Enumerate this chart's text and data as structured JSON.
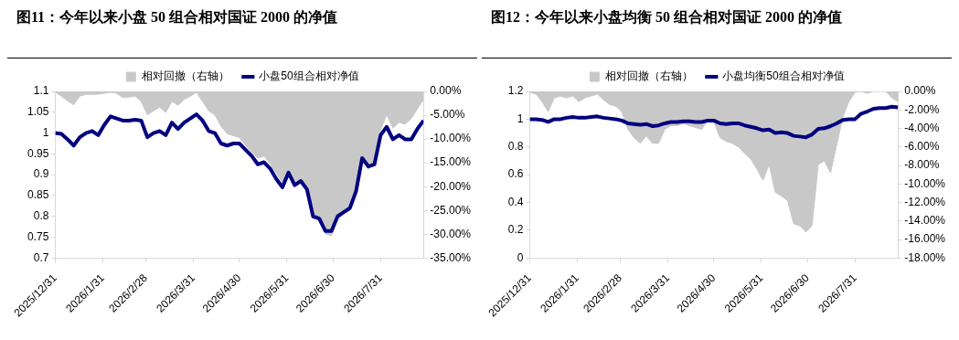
{
  "chart_data": [
    {
      "type": "line",
      "title": "图11：今年以来小盘 50 组合相对国证 2000 的净值",
      "legend": "top",
      "xlim": [
        "2025-12-31",
        "2026-08-28"
      ],
      "xticks": [
        {
          "value": "2025-12-31",
          "label": "2025/12/31"
        },
        {
          "value": "2026-01-31",
          "label": "2026/1/31"
        },
        {
          "value": "2026-02-28",
          "label": "2026/2/28"
        },
        {
          "value": "2026-03-31",
          "label": "2026/3/31"
        },
        {
          "value": "2026-04-30",
          "label": "2026/4/30"
        },
        {
          "value": "2026-05-31",
          "label": "2026/5/31"
        },
        {
          "value": "2026-06-30",
          "label": "2026/6/30"
        },
        {
          "value": "2026-07-31",
          "label": "2026/7/31"
        }
      ],
      "ylim": [
        0.7,
        1.1
      ],
      "yticks": [
        0.7,
        0.75,
        0.8,
        0.85,
        0.9,
        0.95,
        1,
        1.05,
        1.1
      ],
      "y2lim": [
        -35,
        0
      ],
      "y2ticks": [
        {
          "value": -35,
          "label": "-35.00%"
        },
        {
          "value": -30,
          "label": "-30.00%"
        },
        {
          "value": -25,
          "label": "-25.00%"
        },
        {
          "value": -20,
          "label": "-20.00%"
        },
        {
          "value": -15,
          "label": "-15.00%"
        },
        {
          "value": -10,
          "label": "-10.00%"
        },
        {
          "value": -5,
          "label": "-5.00%"
        },
        {
          "value": 0,
          "label": "0.00%"
        }
      ],
      "x": [
        "2025-12-31",
        "2026-01-04",
        "2026-01-08",
        "2026-01-12",
        "2026-01-16",
        "2026-01-20",
        "2026-01-24",
        "2026-01-28",
        "2026-02-01",
        "2026-02-05",
        "2026-02-09",
        "2026-02-13",
        "2026-02-17",
        "2026-02-21",
        "2026-02-25",
        "2026-03-01",
        "2026-03-05",
        "2026-03-09",
        "2026-03-13",
        "2026-03-17",
        "2026-03-21",
        "2026-03-25",
        "2026-03-29",
        "2026-04-02",
        "2026-04-06",
        "2026-04-10",
        "2026-04-14",
        "2026-04-18",
        "2026-04-22",
        "2026-04-26",
        "2026-04-30",
        "2026-05-04",
        "2026-05-08",
        "2026-05-12",
        "2026-05-16",
        "2026-05-20",
        "2026-05-24",
        "2026-05-28",
        "2026-06-01",
        "2026-06-05",
        "2026-06-09",
        "2026-06-13",
        "2026-06-17",
        "2026-06-21",
        "2026-06-25",
        "2026-06-29",
        "2026-07-03",
        "2026-07-07",
        "2026-07-11",
        "2026-07-15",
        "2026-07-19",
        "2026-07-23",
        "2026-07-27",
        "2026-07-31",
        "2026-08-04",
        "2026-08-08",
        "2026-08-12",
        "2026-08-16",
        "2026-08-20",
        "2026-08-24",
        "2026-08-28"
      ],
      "series": [
        {
          "name": "相对回撤（右轴）",
          "type": "area",
          "axis": "y2",
          "color": "#c8c8c8",
          "values": [
            -0.2,
            -1,
            -2,
            -2.8,
            -1,
            -0.6,
            -0.6,
            -0.6,
            -0.4,
            -0.2,
            -0.4,
            -1.3,
            -1.2,
            -1,
            -2.1,
            -4.9,
            -4.1,
            -3.3,
            -4.4,
            -2.1,
            -2.9,
            -1.7,
            -1,
            -0.2,
            -2.1,
            -4.1,
            -4.9,
            -7.3,
            -8.9,
            -9.3,
            -9.7,
            -11.3,
            -12.8,
            -14,
            -13.6,
            -15.2,
            -17.2,
            -19.2,
            -16.8,
            -20,
            -18.8,
            -20.8,
            -25.9,
            -26.7,
            -29.9,
            -30.3,
            -26.7,
            -25.5,
            -25.1,
            -21.2,
            -13.2,
            -16.4,
            -14.8,
            -8.1,
            -4.9,
            -7.7,
            -6.5,
            -6.9,
            -5.7,
            -3.7,
            -1.7
          ]
        },
        {
          "name": "小盘50组合相对净值",
          "type": "line",
          "color": "#000080",
          "values": [
            1.0,
            0.998,
            0.985,
            0.97,
            0.99,
            1.0,
            1.005,
            0.995,
            1.02,
            1.04,
            1.035,
            1.03,
            1.03,
            1.032,
            1.03,
            0.99,
            1.0,
            1.005,
            0.995,
            1.025,
            1.01,
            1.025,
            1.035,
            1.045,
            1.03,
            1.005,
            1.0,
            0.975,
            0.97,
            0.975,
            0.975,
            0.96,
            0.945,
            0.925,
            0.93,
            0.915,
            0.89,
            0.87,
            0.905,
            0.875,
            0.885,
            0.865,
            0.8,
            0.795,
            0.765,
            0.765,
            0.8,
            0.81,
            0.82,
            0.86,
            0.94,
            0.92,
            0.925,
            0.995,
            1.015,
            0.985,
            0.995,
            0.985,
            0.985,
            1.01,
            1.03
          ]
        }
      ]
    },
    {
      "type": "line",
      "title": "图12：今年以来小盘均衡 50 组合相对国证 2000 的净值",
      "legend": "top",
      "xlim": [
        "2025-12-31",
        "2026-08-28"
      ],
      "xticks": [
        {
          "value": "2025-12-31",
          "label": "2025/12/31"
        },
        {
          "value": "2026-01-31",
          "label": "2026/1/31"
        },
        {
          "value": "2026-02-28",
          "label": "2026/2/28"
        },
        {
          "value": "2026-03-31",
          "label": "2026/3/31"
        },
        {
          "value": "2026-04-30",
          "label": "2026/4/30"
        },
        {
          "value": "2026-05-31",
          "label": "2026/5/31"
        },
        {
          "value": "2026-06-30",
          "label": "2026/6/30"
        },
        {
          "value": "2026-07-31",
          "label": "2026/7/31"
        }
      ],
      "ylim": [
        0,
        1.2
      ],
      "yticks": [
        0,
        0.2,
        0.4,
        0.6,
        0.8,
        1,
        1.2
      ],
      "y2lim": [
        -18,
        0
      ],
      "y2ticks": [
        {
          "value": -18,
          "label": "-18.00%"
        },
        {
          "value": -16,
          "label": "-16.00%"
        },
        {
          "value": -14,
          "label": "-14.00%"
        },
        {
          "value": -12,
          "label": "-12.00%"
        },
        {
          "value": -10,
          "label": "-10.00%"
        },
        {
          "value": -8,
          "label": "-8.00%"
        },
        {
          "value": -6,
          "label": "-6.00%"
        },
        {
          "value": -4,
          "label": "-4.00%"
        },
        {
          "value": -2,
          "label": "-2.00%"
        },
        {
          "value": 0,
          "label": "0.00%"
        }
      ],
      "x": [
        "2025-12-31",
        "2026-01-04",
        "2026-01-08",
        "2026-01-12",
        "2026-01-16",
        "2026-01-20",
        "2026-01-24",
        "2026-01-28",
        "2026-02-01",
        "2026-02-05",
        "2026-02-09",
        "2026-02-13",
        "2026-02-17",
        "2026-02-21",
        "2026-02-25",
        "2026-03-01",
        "2026-03-05",
        "2026-03-09",
        "2026-03-13",
        "2026-03-17",
        "2026-03-21",
        "2026-03-25",
        "2026-03-29",
        "2026-04-02",
        "2026-04-06",
        "2026-04-10",
        "2026-04-14",
        "2026-04-18",
        "2026-04-22",
        "2026-04-26",
        "2026-04-30",
        "2026-05-04",
        "2026-05-08",
        "2026-05-12",
        "2026-05-16",
        "2026-05-20",
        "2026-05-24",
        "2026-05-28",
        "2026-06-01",
        "2026-06-05",
        "2026-06-09",
        "2026-06-13",
        "2026-06-17",
        "2026-06-21",
        "2026-06-25",
        "2026-06-29",
        "2026-07-03",
        "2026-07-07",
        "2026-07-11",
        "2026-07-15",
        "2026-07-19",
        "2026-07-23",
        "2026-07-27",
        "2026-07-31",
        "2026-08-04",
        "2026-08-08",
        "2026-08-12",
        "2026-08-16",
        "2026-08-20",
        "2026-08-24",
        "2026-08-28"
      ],
      "series": [
        {
          "name": "相对回撤（右轴）",
          "type": "area",
          "axis": "y2",
          "color": "#c8c8c8",
          "values": [
            -0.1,
            -0.3,
            -1.1,
            -2.2,
            -0.7,
            -0.5,
            -0.7,
            -0.5,
            -1.1,
            -0.7,
            -0.5,
            -0.3,
            -0.9,
            -1.4,
            -1.6,
            -2.2,
            -4.1,
            -5,
            -5.6,
            -4.8,
            -5.6,
            -5.6,
            -4.1,
            -3.7,
            -3.7,
            -3.5,
            -3.7,
            -3.9,
            -4.1,
            -3.1,
            -3.3,
            -5,
            -5.4,
            -5.6,
            -6,
            -6.7,
            -7.3,
            -8.4,
            -9.6,
            -7.9,
            -10.9,
            -11.3,
            -11.8,
            -14.3,
            -14.5,
            -15.2,
            -14.5,
            -7.9,
            -7.5,
            -8.8,
            -5.8,
            -2.8,
            -1.1,
            -0.1,
            0,
            -0.2,
            0,
            0,
            0,
            -0.7,
            -1.1
          ]
        },
        {
          "name": "小盘均衡50组合相对净值",
          "type": "line",
          "color": "#000080",
          "values": [
            1.0,
            1.0,
            0.995,
            0.98,
            1.0,
            1.0,
            1.01,
            1.015,
            1.01,
            1.01,
            1.015,
            1.02,
            1.01,
            1.005,
            1.0,
            0.99,
            0.97,
            0.965,
            0.96,
            0.965,
            0.95,
            0.955,
            0.97,
            0.98,
            0.98,
            0.985,
            0.985,
            0.98,
            0.98,
            0.99,
            0.99,
            0.97,
            0.965,
            0.97,
            0.97,
            0.955,
            0.945,
            0.935,
            0.92,
            0.925,
            0.9,
            0.905,
            0.9,
            0.88,
            0.875,
            0.87,
            0.89,
            0.93,
            0.935,
            0.95,
            0.97,
            0.995,
            1.0,
            1.0,
            1.04,
            1.055,
            1.075,
            1.08,
            1.08,
            1.09,
            1.085
          ]
        }
      ]
    }
  ]
}
